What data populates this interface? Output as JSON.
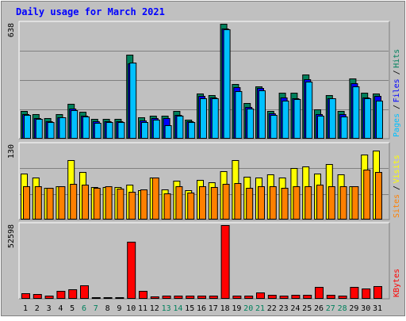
{
  "colors": {
    "background": "#c0c0c0",
    "plot_area": "#c0c0c0",
    "gridline": "#808080",
    "title": "#0000ff",
    "hits": "#00805c",
    "files": "#0000ff",
    "pages": "#00c0ff",
    "visits": "#ffff00",
    "sites": "#ff8000",
    "kbytes": "#ff0000",
    "weekend_label": "#00805c",
    "weekday_label": "#000000"
  },
  "chart_data": [
    {
      "type": "bar",
      "panel": "hits-files-pages",
      "title": "Daily usage for March 2021",
      "ymax_label": "638",
      "ylim": [
        0,
        638
      ],
      "legend": [
        {
          "name": "Pages",
          "color_key": "pages"
        },
        {
          "name": "Files",
          "color_key": "files"
        },
        {
          "name": "Hits",
          "color_key": "hits"
        }
      ],
      "legend_separator": "/",
      "categories": [
        "1",
        "2",
        "3",
        "4",
        "5",
        "6",
        "7",
        "8",
        "9",
        "10",
        "11",
        "12",
        "13",
        "14",
        "15",
        "16",
        "17",
        "18",
        "19",
        "20",
        "21",
        "22",
        "23",
        "24",
        "25",
        "26",
        "27",
        "28",
        "29",
        "30",
        "31"
      ],
      "series": [
        {
          "name": "Hits",
          "color_key": "hits",
          "values": [
            152,
            132,
            110,
            135,
            190,
            146,
            106,
            108,
            108,
            466,
            113,
            122,
            122,
            150,
            100,
            248,
            241,
            638,
            302,
            194,
            288,
            152,
            252,
            254,
            356,
            158,
            240,
            151,
            334,
            253,
            250
          ]
        },
        {
          "name": "Files",
          "color_key": "files",
          "values": [
            132,
            112,
            92,
            117,
            162,
            126,
            92,
            92,
            92,
            418,
            97,
            110,
            110,
            128,
            92,
            233,
            226,
            611,
            283,
            175,
            280,
            139,
            227,
            222,
            330,
            135,
            222,
            133,
            306,
            227,
            233
          ]
        },
        {
          "name": "Pages",
          "color_key": "pages",
          "values": [
            130,
            108,
            88,
            115,
            155,
            120,
            85,
            88,
            88,
            420,
            88,
            100,
            72,
            124,
            90,
            222,
            222,
            607,
            260,
            165,
            265,
            130,
            210,
            215,
            315,
            125,
            220,
            120,
            290,
            222,
            208
          ]
        }
      ]
    },
    {
      "type": "bar",
      "panel": "visits-sites",
      "ymax_label": "130",
      "ylim": [
        0,
        130
      ],
      "legend": [
        {
          "name": "Sites",
          "color_key": "sites"
        },
        {
          "name": "Visits",
          "color_key": "visits"
        }
      ],
      "legend_separator": "/",
      "categories": [
        "1",
        "2",
        "3",
        "4",
        "5",
        "6",
        "7",
        "8",
        "9",
        "10",
        "11",
        "12",
        "13",
        "14",
        "15",
        "16",
        "17",
        "18",
        "19",
        "20",
        "21",
        "22",
        "23",
        "24",
        "25",
        "26",
        "27",
        "28",
        "29",
        "30",
        "31"
      ],
      "series": [
        {
          "name": "Visits",
          "color_key": "visits",
          "values": [
            80,
            73,
            55,
            58,
            104,
            82,
            56,
            56,
            56,
            60,
            50,
            73,
            52,
            67,
            50,
            68,
            64,
            84,
            104,
            74,
            73,
            78,
            72,
            90,
            92,
            80,
            96,
            78,
            58,
            113,
            120
          ]
        },
        {
          "name": "Sites",
          "color_key": "sites",
          "values": [
            57,
            57,
            55,
            58,
            61,
            60,
            55,
            58,
            53,
            47,
            52,
            72,
            45,
            58,
            46,
            58,
            56,
            62,
            63,
            55,
            58,
            58,
            55,
            57,
            57,
            60,
            57,
            57,
            57,
            87,
            83
          ]
        }
      ]
    },
    {
      "type": "bar",
      "panel": "kbytes",
      "ymax_label": "52598",
      "ylim": [
        0,
        52598
      ],
      "legend": [
        {
          "name": "KBytes",
          "color_key": "kbytes"
        }
      ],
      "categories": [
        "1",
        "2",
        "3",
        "4",
        "5",
        "6",
        "7",
        "8",
        "9",
        "10",
        "11",
        "12",
        "13",
        "14",
        "15",
        "16",
        "17",
        "18",
        "19",
        "20",
        "21",
        "22",
        "23",
        "24",
        "25",
        "26",
        "27",
        "28",
        "29",
        "30",
        "31"
      ],
      "weekend_days": [
        "6",
        "7",
        "13",
        "14",
        "20",
        "21",
        "27",
        "28"
      ],
      "series": [
        {
          "name": "KBytes",
          "color_key": "kbytes",
          "values": [
            3600,
            3000,
            1800,
            4900,
            6300,
            9400,
            700,
            700,
            700,
            40600,
            5100,
            1400,
            1700,
            1500,
            1600,
            1900,
            2000,
            52598,
            1900,
            1700,
            4000,
            2100,
            2000,
            2200,
            2100,
            8000,
            2100,
            1700,
            7900,
            6900,
            8600
          ]
        }
      ]
    }
  ]
}
